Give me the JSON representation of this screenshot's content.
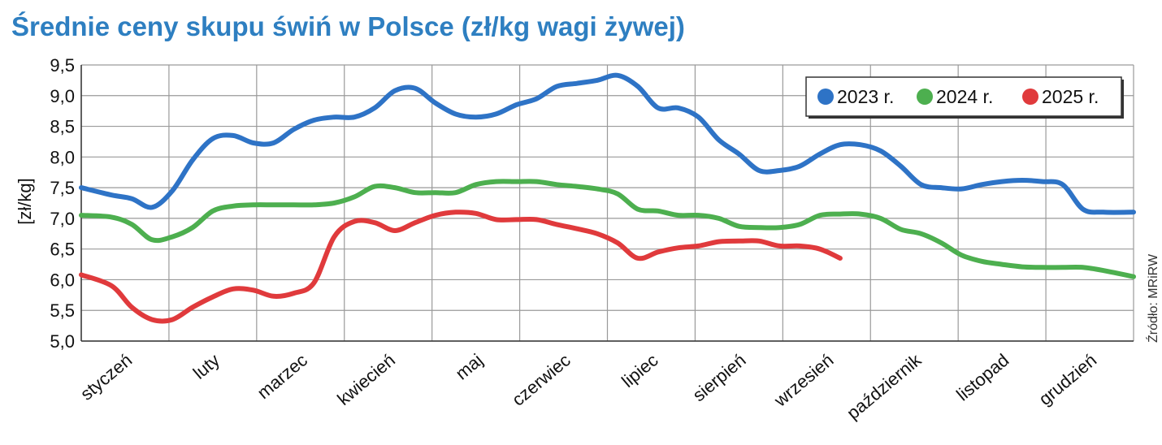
{
  "chart_data": {
    "type": "line",
    "title": "Średnie ceny skupu świń w Polsce (zł/kg wagi żywej)",
    "ylabel": "[zł/kg]",
    "source": "Źródło: MRiRW",
    "ylim": [
      5.0,
      9.5
    ],
    "yticks": [
      "9,5",
      "9,0",
      "8,5",
      "8,0",
      "7,5",
      "7,0",
      "6,5",
      "6,0",
      "5,5",
      "5,0"
    ],
    "categories": [
      "styczeń",
      "luty",
      "marzec",
      "kwiecień",
      "maj",
      "czerwiec",
      "lipiec",
      "sierpień",
      "wrzesień",
      "październik",
      "listopad",
      "grudzień"
    ],
    "grid": true,
    "legend_position": "top-right",
    "x_unit": "week",
    "series": [
      {
        "name": "2023 r.",
        "color": "#2e73c6",
        "points": [
          [
            0,
            7.5
          ],
          [
            1,
            7.38
          ],
          [
            2,
            7.32
          ],
          [
            3,
            7.18
          ],
          [
            4,
            7.45
          ],
          [
            5,
            7.95
          ],
          [
            6,
            8.3
          ],
          [
            7,
            8.35
          ],
          [
            8,
            8.23
          ],
          [
            9,
            8.23
          ],
          [
            10,
            8.45
          ],
          [
            11,
            8.6
          ],
          [
            12,
            8.65
          ],
          [
            13,
            8.65
          ],
          [
            14,
            8.8
          ],
          [
            15,
            9.08
          ],
          [
            16,
            9.12
          ],
          [
            17,
            8.88
          ],
          [
            18,
            8.7
          ],
          [
            19,
            8.65
          ],
          [
            20,
            8.7
          ],
          [
            21,
            8.85
          ],
          [
            22,
            8.95
          ],
          [
            23,
            9.15
          ],
          [
            24,
            9.2
          ],
          [
            25,
            9.25
          ],
          [
            26,
            9.33
          ],
          [
            27,
            9.15
          ],
          [
            28,
            8.8
          ],
          [
            29,
            8.8
          ],
          [
            30,
            8.65
          ],
          [
            31,
            8.28
          ],
          [
            32,
            8.05
          ],
          [
            33,
            7.78
          ],
          [
            34,
            7.78
          ],
          [
            35,
            7.85
          ],
          [
            36,
            8.05
          ],
          [
            37,
            8.2
          ],
          [
            38,
            8.2
          ],
          [
            39,
            8.1
          ],
          [
            40,
            7.85
          ],
          [
            41,
            7.55
          ],
          [
            42,
            7.5
          ],
          [
            43,
            7.48
          ],
          [
            44,
            7.55
          ],
          [
            45,
            7.6
          ],
          [
            46,
            7.62
          ],
          [
            47,
            7.6
          ],
          [
            48,
            7.55
          ],
          [
            49,
            7.15
          ],
          [
            50,
            7.1
          ],
          [
            51,
            7.1
          ]
        ]
      },
      {
        "name": "2024 r.",
        "color": "#4daf4f",
        "points": [
          [
            0,
            7.05
          ],
          [
            1,
            7.02
          ],
          [
            2,
            6.9
          ],
          [
            3,
            6.65
          ],
          [
            4,
            6.7
          ],
          [
            5,
            6.85
          ],
          [
            6,
            7.12
          ],
          [
            7,
            7.2
          ],
          [
            8,
            7.22
          ],
          [
            9,
            7.22
          ],
          [
            10,
            7.22
          ],
          [
            11,
            7.22
          ],
          [
            12,
            7.25
          ],
          [
            13,
            7.35
          ],
          [
            14,
            7.52
          ],
          [
            15,
            7.5
          ],
          [
            16,
            7.42
          ],
          [
            17,
            7.42
          ],
          [
            18,
            7.42
          ],
          [
            19,
            7.55
          ],
          [
            20,
            7.6
          ],
          [
            21,
            7.6
          ],
          [
            22,
            7.6
          ],
          [
            23,
            7.55
          ],
          [
            24,
            7.52
          ],
          [
            25,
            7.48
          ],
          [
            26,
            7.4
          ],
          [
            27,
            7.15
          ],
          [
            28,
            7.12
          ],
          [
            29,
            7.05
          ],
          [
            30,
            7.05
          ],
          [
            31,
            7.0
          ],
          [
            32,
            6.87
          ],
          [
            33,
            6.85
          ],
          [
            34,
            6.85
          ],
          [
            35,
            6.9
          ],
          [
            36,
            7.05
          ],
          [
            37,
            7.07
          ],
          [
            38,
            7.07
          ],
          [
            39,
            7.0
          ],
          [
            40,
            6.82
          ],
          [
            41,
            6.75
          ],
          [
            42,
            6.6
          ],
          [
            43,
            6.4
          ],
          [
            44,
            6.3
          ],
          [
            45,
            6.25
          ],
          [
            46,
            6.21
          ],
          [
            47,
            6.2
          ],
          [
            48,
            6.2
          ],
          [
            49,
            6.2
          ],
          [
            50,
            6.15
          ],
          [
            51,
            6.05
          ]
        ]
      },
      {
        "name": "2025 r.",
        "color": "#e03a3c",
        "points": [
          [
            0,
            6.08
          ],
          [
            1,
            5.9
          ],
          [
            2,
            5.55
          ],
          [
            3,
            5.35
          ],
          [
            4,
            5.35
          ],
          [
            5,
            5.55
          ],
          [
            6,
            5.72
          ],
          [
            7,
            5.85
          ],
          [
            8,
            5.83
          ],
          [
            9,
            5.73
          ],
          [
            10,
            5.78
          ],
          [
            11,
            5.95
          ],
          [
            12,
            6.7
          ],
          [
            13,
            6.95
          ],
          [
            14,
            6.93
          ],
          [
            15,
            6.8
          ],
          [
            16,
            6.93
          ],
          [
            17,
            7.05
          ],
          [
            18,
            7.1
          ],
          [
            19,
            7.08
          ],
          [
            20,
            6.98
          ],
          [
            21,
            6.98
          ],
          [
            22,
            6.98
          ],
          [
            23,
            6.9
          ],
          [
            24,
            6.83
          ],
          [
            25,
            6.75
          ],
          [
            26,
            6.6
          ],
          [
            27,
            6.35
          ],
          [
            28,
            6.45
          ],
          [
            29,
            6.52
          ],
          [
            30,
            6.55
          ],
          [
            31,
            6.62
          ],
          [
            32,
            6.63
          ],
          [
            33,
            6.63
          ],
          [
            34,
            6.55
          ],
          [
            35,
            6.55
          ],
          [
            36,
            6.5
          ],
          [
            37,
            6.35
          ]
        ]
      }
    ]
  }
}
